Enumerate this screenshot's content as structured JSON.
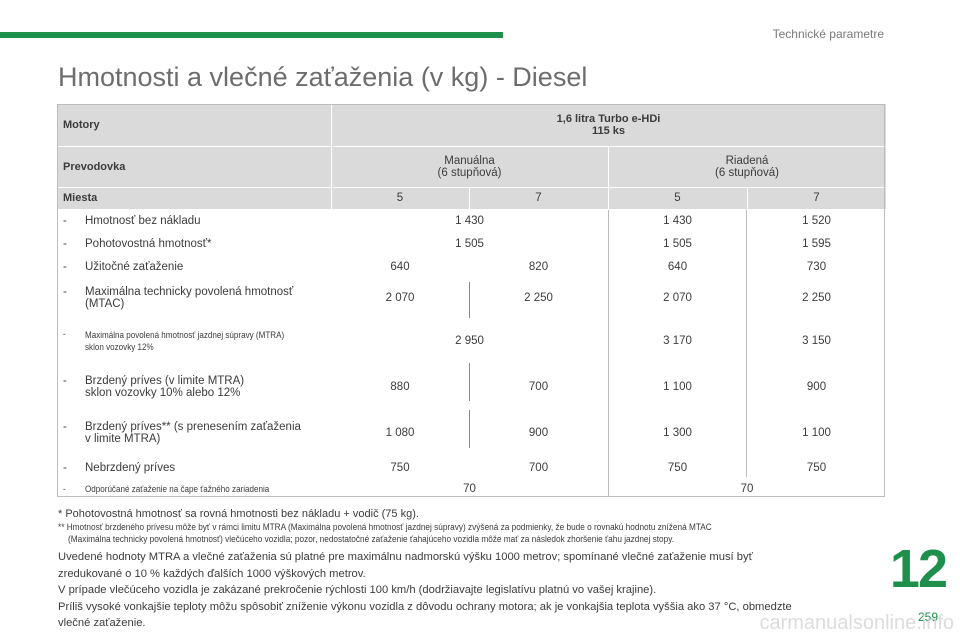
{
  "header": {
    "section_title": "Technické parametre",
    "page_title": "Hmotnosti a vlečné zaťaženia (v kg) - Diesel"
  },
  "table": {
    "motory_label": "Motory",
    "engine_line1": "1,6 litra Turbo e-HDi",
    "engine_line2": "115 ks",
    "prevodovka_label": "Prevodovka",
    "manual_line1": "Manuálna",
    "manual_line2": "(6 stupňová)",
    "auto_line1": "Riadená",
    "auto_line2": "(6 stupňová)",
    "miesta_label": "Miesta",
    "seats": [
      "5",
      "7",
      "5",
      "7"
    ],
    "rows": [
      {
        "label1": "Hmotnosť bez nákladu",
        "label2": "",
        "values": [
          "1 430",
          "1 430",
          "1 520"
        ]
      },
      {
        "label1": "Pohotovostná hmotnosť*",
        "label2": "",
        "values": [
          "1 505",
          "1 505",
          "1 595"
        ]
      },
      {
        "label1": "Užitočné zaťaženie",
        "label2": "",
        "values": [
          "640",
          "820",
          "640",
          "730"
        ]
      },
      {
        "label1": "Maximálna technicky povolená hmotnosť",
        "label2": "(MTAC)",
        "values": [
          "2 070",
          "2 250",
          "2 070",
          "2 250"
        ]
      },
      {
        "label1": "Maximálna povolená hmotnosť jazdnej súpravy (MTRA)",
        "label2": "sklon vozovky 12%",
        "values": [
          "2 950",
          "3 170",
          "3 150"
        ]
      },
      {
        "label1": "Brzdený príves (v limite MTRA)",
        "label2": "sklon vozovky 10% alebo 12%",
        "values": [
          "880",
          "700",
          "1 100",
          "900"
        ]
      },
      {
        "label1": "Brzdený príves** (s prenesením zaťaženia",
        "label2": "v limite MTRA)",
        "values": [
          "1 080",
          "900",
          "1 300",
          "1 100"
        ]
      },
      {
        "label1": "Nebrzdený príves",
        "label2": "",
        "values": [
          "750",
          "700",
          "750",
          "750"
        ]
      },
      {
        "label1": "Odporúčané zaťaženie na čape ťažného zariadenia",
        "label2": "",
        "values": [
          "70",
          "70"
        ]
      }
    ],
    "dash": "-"
  },
  "footnotes": {
    "fn1": "* Pohotovostná hmotnosť sa rovná hmotnosti bez nákladu + vodič (75 kg).",
    "fn2a": "** Hmotnosť brzdeného prívesu môže byť v rámci limitu MTRA (Maximálna povolená hmotnosť jazdnej súpravy) zvýšená za podmienky, že bude o rovnakú hodnotu znížená MTAC",
    "fn2b": "(Maximálna technicky povolená hmotnosť) vlečúceho vozidla; pozor, nedostatočné zaťaženie ťahajúceho vozidla môže mať za následok zhoršenie ťahu jazdnej stopy."
  },
  "paragraphs": {
    "p1a": "Uvedené hodnoty MTRA a vlečné zaťaženia sú platné pre maximálnu nadmorskú výšku 1000 metrov; spomínané vlečné zaťaženie musí byť",
    "p1b": "zredukované o 10 % každých ďalších 1000 výškových metrov.",
    "p2": "V prípade vlečúceho vozidla je zakázané prekročenie rýchlosti 100 km/h (dodržiavajte legislatívu platnú vo vašej krajine).",
    "p3a": "Príliš vysoké vonkajšie teploty môžu spôsobiť zníženie výkonu vozidla z dôvodu ochrany motora; ak je vonkajšia teplota vyššia ako 37 °C, obmedzte",
    "p3b": "vlečné zaťaženie."
  },
  "chapter_number": "12",
  "page_number": "259",
  "watermark": "carmanualsonline.info",
  "colors": {
    "accent": "#1f8f4c",
    "header_bg": "#dadada"
  }
}
